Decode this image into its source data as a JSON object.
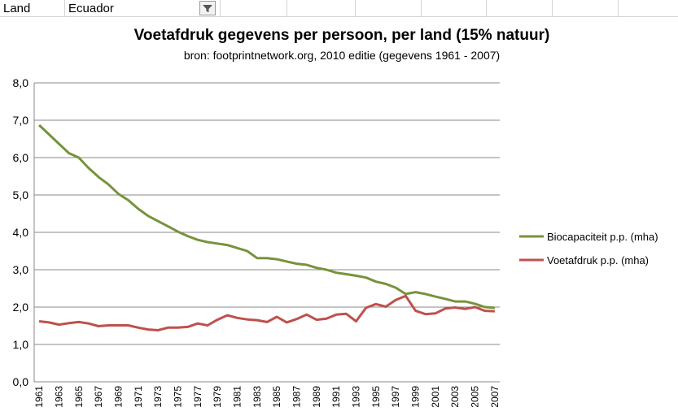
{
  "filter": {
    "label": "Land",
    "value": "Ecuador"
  },
  "chart_data": {
    "type": "line",
    "title": "Voetafdruk gegevens per persoon,  per land (15% natuur)",
    "subtitle": "bron: footprintnetwork.org, 2010 editie (gegevens 1961 - 2007)",
    "categories": [
      "1961",
      null,
      "1963",
      null,
      "1965",
      null,
      "1967",
      null,
      "1969",
      null,
      "1971",
      null,
      "1973",
      null,
      "1975",
      null,
      "1977",
      null,
      "1979",
      null,
      "1981",
      null,
      "1983",
      null,
      "1985",
      null,
      "1987",
      null,
      "1989",
      null,
      "1991",
      null,
      "1993",
      null,
      "1995",
      null,
      "1997",
      null,
      "1999",
      null,
      "2001",
      null,
      "2003",
      null,
      "2005",
      null,
      "2007"
    ],
    "series": [
      {
        "name": "Biocapaciteit p.p. (mha)",
        "color": "#77933c",
        "values": [
          6.87,
          6.62,
          6.37,
          6.12,
          6.0,
          5.72,
          5.48,
          5.28,
          5.03,
          4.86,
          4.63,
          4.44,
          4.3,
          4.16,
          4.02,
          3.9,
          3.8,
          3.74,
          3.7,
          3.66,
          3.58,
          3.5,
          3.31,
          3.31,
          3.28,
          3.22,
          3.16,
          3.13,
          3.05,
          3.0,
          2.92,
          2.88,
          2.84,
          2.79,
          2.68,
          2.62,
          2.52,
          2.35,
          2.4,
          2.35,
          2.28,
          2.22,
          2.15,
          2.15,
          2.09,
          2.0,
          1.98
        ]
      },
      {
        "name": "Voetafdruk p.p. (mha)",
        "color": "#c0504d",
        "values": [
          1.62,
          1.59,
          1.53,
          1.57,
          1.6,
          1.56,
          1.49,
          1.51,
          1.51,
          1.51,
          1.45,
          1.4,
          1.38,
          1.45,
          1.45,
          1.47,
          1.56,
          1.51,
          1.66,
          1.78,
          1.71,
          1.67,
          1.65,
          1.6,
          1.74,
          1.59,
          1.68,
          1.8,
          1.66,
          1.69,
          1.8,
          1.82,
          1.62,
          1.98,
          2.08,
          2.01,
          2.19,
          2.3,
          1.9,
          1.81,
          1.83,
          1.96,
          1.99,
          1.95,
          2.0,
          1.9,
          1.89
        ]
      }
    ],
    "ylim": [
      0,
      8
    ],
    "yticks": [
      {
        "value": 0,
        "label": "0,0"
      },
      {
        "value": 1,
        "label": "1,0"
      },
      {
        "value": 2,
        "label": "2,0"
      },
      {
        "value": 3,
        "label": "3,0"
      },
      {
        "value": 4,
        "label": "4,0"
      },
      {
        "value": 5,
        "label": "5,0"
      },
      {
        "value": 6,
        "label": "6,0"
      },
      {
        "value": 7,
        "label": "7,0"
      },
      {
        "value": 8,
        "label": "8,0"
      }
    ],
    "grid": true,
    "legend": "right"
  }
}
